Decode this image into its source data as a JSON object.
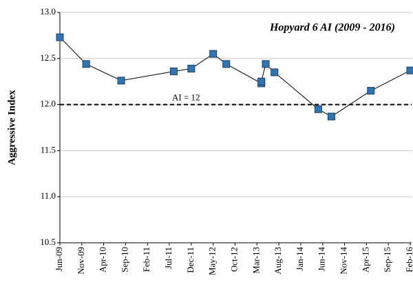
{
  "chart_data": {
    "type": "line",
    "title": "Hopyard 6 AI (2009 - 2016)",
    "y_label": "Aggressive Index",
    "x": [
      "2009-06",
      "2009-12",
      "2010-08",
      "2011-08",
      "2011-12",
      "2012-05",
      "2012-08",
      "2013-04",
      "2013-04",
      "2013-05",
      "2013-07",
      "2014-05",
      "2014-08",
      "2015-05",
      "2016-02"
    ],
    "series": [
      {
        "name": "Hopyard 6",
        "color": "#2e75b6",
        "values": [
          12.73,
          12.44,
          12.26,
          12.36,
          12.39,
          12.55,
          12.44,
          12.23,
          12.25,
          12.44,
          12.35,
          11.95,
          11.87,
          12.15,
          12.37
        ]
      }
    ],
    "xlim": [
      "2009-06",
      "2016-02"
    ],
    "xticks": [
      {
        "value": "2009-06",
        "label": "Jun-09"
      },
      {
        "value": "2009-11",
        "label": "Nov-09"
      },
      {
        "value": "2010-04",
        "label": "Apr-10"
      },
      {
        "value": "2010-09",
        "label": "Sep-10"
      },
      {
        "value": "2011-02",
        "label": "Feb-11"
      },
      {
        "value": "2011-07",
        "label": "Jul-11"
      },
      {
        "value": "2011-12",
        "label": "Dec-11"
      },
      {
        "value": "2012-05",
        "label": "May-12"
      },
      {
        "value": "2012-10",
        "label": "Oct-12"
      },
      {
        "value": "2013-03",
        "label": "Mar-13"
      },
      {
        "value": "2013-08",
        "label": "Aug-13"
      },
      {
        "value": "2014-01",
        "label": "Jan-14"
      },
      {
        "value": "2014-06",
        "label": "Jun-14"
      },
      {
        "value": "2014-11",
        "label": "Nov-14"
      },
      {
        "value": "2015-04",
        "label": "Apr-15"
      },
      {
        "value": "2015-09",
        "label": "Sep-15"
      },
      {
        "value": "2016-02",
        "label": "Feb-16"
      }
    ],
    "ylim": [
      10.5,
      13.0
    ],
    "yticks": [
      {
        "value": 10.5,
        "label": "10.5"
      },
      {
        "value": 11,
        "label": "11.0"
      },
      {
        "value": 11.5,
        "label": "11.5"
      },
      {
        "value": 12,
        "label": "12.0"
      },
      {
        "value": 12.5,
        "label": "12.5"
      },
      {
        "value": 13,
        "label": "13.0"
      }
    ],
    "grid": true,
    "reference_line": {
      "value": 12,
      "label": "AI = 12"
    }
  }
}
